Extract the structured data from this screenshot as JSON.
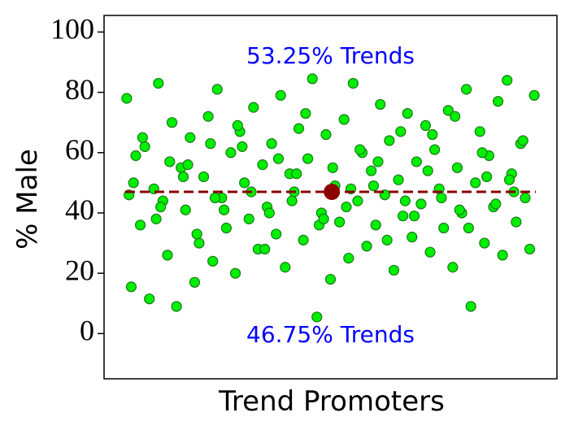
{
  "chart_data": {
    "type": "scatter",
    "y_label": "% Male",
    "x_label": "Trend Promoters",
    "annotations": [
      {
        "text": "53.25% Trends",
        "color": "#0000ff"
      },
      {
        "text": "46.75% Trends",
        "color": "#0000ff"
      }
    ],
    "xlim": [
      0,
      100
    ],
    "ylim": [
      -15,
      105.5
    ],
    "yticks": [
      0,
      20,
      40,
      60,
      80,
      100
    ],
    "series": [
      {
        "color": "#00ee00",
        "edge_color": "#1a7a1a",
        "x": [
          5,
          6,
          7,
          8,
          9,
          10,
          11,
          12,
          13,
          14,
          15,
          16,
          17,
          18,
          19,
          20,
          21,
          22,
          23,
          24,
          25,
          26,
          27,
          28,
          29,
          30,
          31,
          32,
          33,
          34,
          35,
          36,
          37,
          38,
          39,
          40,
          41,
          42,
          43,
          44,
          45,
          46,
          47,
          48,
          49,
          50,
          51,
          52,
          53,
          54,
          55,
          56,
          57,
          58,
          59,
          60,
          61,
          62,
          63,
          64,
          65,
          66,
          67,
          68,
          69,
          70,
          71,
          72,
          73,
          74,
          75,
          76,
          77,
          78,
          79,
          80,
          81,
          82,
          83,
          84,
          85,
          86,
          87,
          88,
          89,
          90,
          91,
          92,
          93,
          94,
          95,
          5.5,
          8.5,
          11.5,
          14.5,
          17.5,
          20.5,
          23.5,
          26.5,
          29.5,
          32.5,
          35.5,
          38.5,
          41.5,
          44.5,
          47.5,
          50.5,
          53.5,
          56.5,
          59.5,
          62.5,
          65.5,
          68.5,
          71.5,
          74.5,
          77.5,
          80.5,
          83.5,
          86.5,
          89.5,
          92.5,
          6.5,
          12.5,
          18.5,
          24.5,
          30.5,
          36.5,
          42.5,
          48.5,
          54.5,
          60.5,
          66.5,
          72.5,
          78.5,
          84.5,
          90.5
        ],
        "values": [
          78,
          15.5,
          59,
          36,
          62,
          11.5,
          48,
          83,
          44,
          26,
          70,
          9,
          55,
          41,
          65,
          17,
          30,
          52,
          72,
          24,
          81,
          45,
          35,
          60,
          20,
          67,
          50,
          38,
          75,
          28,
          56,
          42,
          63,
          33,
          79,
          22,
          53,
          47,
          68,
          31,
          58,
          84.5,
          5.5,
          40,
          66,
          18,
          49,
          37,
          71,
          25,
          83,
          44,
          60,
          29,
          54,
          36,
          76,
          46,
          64,
          21,
          51,
          39,
          73,
          32,
          57,
          43,
          69,
          27,
          61,
          48,
          35,
          74,
          22,
          55,
          40,
          81,
          9,
          50,
          67,
          30,
          59,
          42,
          77,
          26,
          84,
          53,
          37,
          63,
          45,
          28,
          79,
          46,
          65,
          38,
          57,
          52,
          33,
          63,
          41,
          69,
          47,
          28,
          58,
          44,
          73,
          36,
          55,
          42,
          61,
          49,
          31,
          67,
          39,
          54,
          45,
          72,
          35,
          60,
          43,
          51,
          64,
          50,
          42,
          56,
          45,
          62,
          40,
          53,
          38,
          48,
          57,
          44,
          66,
          41,
          52,
          47
        ]
      }
    ],
    "mean_line": {
      "y": 47,
      "color": "#8b0000"
    },
    "mean_point": {
      "x": 50.3,
      "y": 47,
      "color": "#8b0000"
    }
  }
}
